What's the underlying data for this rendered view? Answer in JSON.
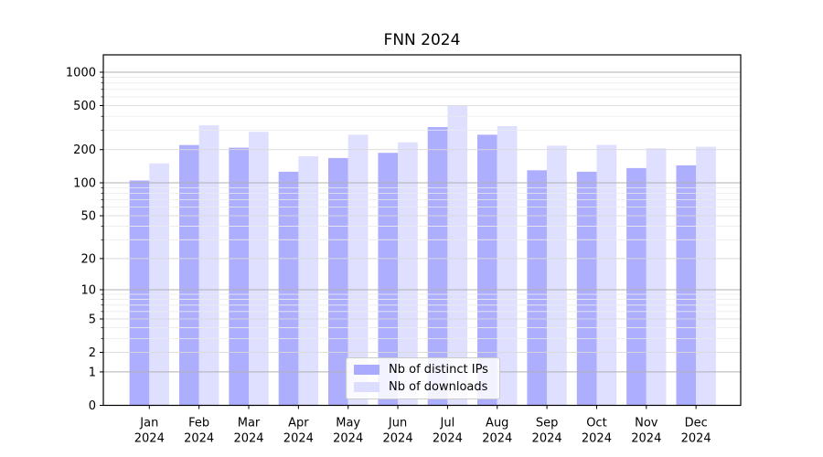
{
  "chart_data": {
    "type": "bar",
    "title": "FNN 2024",
    "categories": [
      "Jan",
      "Feb",
      "Mar",
      "Apr",
      "May",
      "Jun",
      "Jul",
      "Aug",
      "Sep",
      "Oct",
      "Nov",
      "Dec"
    ],
    "category_year_label": "2024",
    "series": [
      {
        "name": "Nb of distinct IPs",
        "color": "#aaaaff",
        "values": [
          105,
          220,
          208,
          126,
          168,
          187,
          320,
          273,
          130,
          126,
          136,
          144
        ]
      },
      {
        "name": "Nb of downloads",
        "color": "#ddddff",
        "values": [
          150,
          332,
          290,
          174,
          273,
          233,
          500,
          326,
          217,
          221,
          206,
          212
        ]
      }
    ],
    "y_axis": {
      "scale": "log1p",
      "labeled_ticks": [
        0,
        1,
        2,
        5,
        10,
        20,
        50,
        100,
        200,
        500,
        1000
      ],
      "decade_ticks": [
        1,
        10,
        100,
        1000
      ],
      "minor_ticks": [
        3,
        4,
        6,
        7,
        8,
        9,
        30,
        40,
        60,
        70,
        80,
        90,
        300,
        400,
        600,
        700,
        800,
        900
      ],
      "top_labeled_value": 1000
    },
    "xlabel": "",
    "ylabel": "",
    "grid": true,
    "grid_colors": {
      "decade": "#b0b0b0",
      "labeled": "#d9d9d9",
      "minor": "#ececec"
    },
    "legend": {
      "position": "lower center"
    }
  }
}
